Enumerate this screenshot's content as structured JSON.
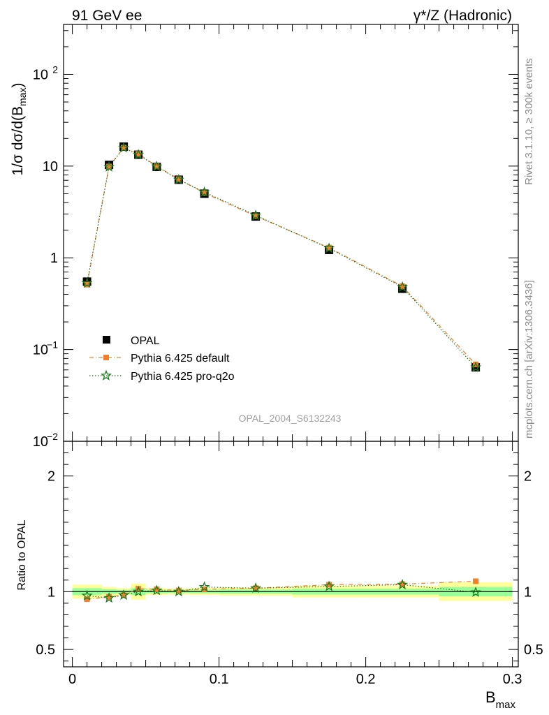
{
  "header": {
    "left": "91 GeV ee",
    "right": "γ*/Z (Hadronic)"
  },
  "side_labels": {
    "rivet": "Rivet 3.1.10, ≥ 300k events",
    "mcplots": "mcplots.cern.ch [arXiv:1306.3436]"
  },
  "watermark": "OPAL_2004_S6132243",
  "chart_data": [
    {
      "type": "line",
      "panel": "main",
      "ylabel": "1/σ dσ/d(B_max)",
      "yscale": "log",
      "ylim": [
        0.01,
        350
      ],
      "xlim": [
        -0.006,
        0.304
      ],
      "yticks": [
        {
          "v": 0.01,
          "label": "10",
          "exp": "−2"
        },
        {
          "v": 0.1,
          "label": "10",
          "exp": "−1"
        },
        {
          "v": 1,
          "label": "1",
          "exp": ""
        },
        {
          "v": 10,
          "label": "10",
          "exp": ""
        },
        {
          "v": 100,
          "label": "10",
          "exp": "2"
        }
      ],
      "legend_position": "center-left",
      "x": [
        0.01,
        0.025,
        0.035,
        0.045,
        0.0575,
        0.0725,
        0.09,
        0.125,
        0.175,
        0.225,
        0.275
      ],
      "series": [
        {
          "name": "OPAL",
          "style": "data",
          "color": "#000000",
          "values": [
            0.55,
            10.3,
            16.3,
            13.3,
            9.8,
            7.1,
            5.0,
            2.82,
            1.22,
            0.46,
            0.064
          ]
        },
        {
          "name": "Pythia 6.425 default",
          "style": "dashdot",
          "color": "#f08030",
          "values": [
            0.51,
            9.9,
            15.9,
            13.6,
            10.0,
            7.2,
            5.1,
            2.85,
            1.29,
            0.49,
            0.069
          ]
        },
        {
          "name": "Pythia 6.425 pro-q2o",
          "style": "dotted",
          "color": "#1a7a1a",
          "values": [
            0.53,
            9.8,
            15.8,
            13.3,
            9.9,
            7.1,
            5.2,
            2.9,
            1.27,
            0.48,
            0.064
          ]
        }
      ]
    },
    {
      "type": "line",
      "panel": "ratio",
      "xlabel": "B_max",
      "ylabel": "Ratio to OPAL",
      "ylim": [
        0.35,
        2.3
      ],
      "yticks": [
        0.5,
        1,
        2
      ],
      "xticks": [
        0,
        0.1,
        0.2,
        0.3
      ],
      "x": [
        0.01,
        0.025,
        0.035,
        0.045,
        0.0575,
        0.0725,
        0.09,
        0.125,
        0.175,
        0.225,
        0.275
      ],
      "bins": [
        {
          "lo": 0.0,
          "hi": 0.02,
          "yellow": 0.06,
          "green": 0.03
        },
        {
          "lo": 0.02,
          "hi": 0.03,
          "yellow": 0.04,
          "green": 0.02
        },
        {
          "lo": 0.03,
          "hi": 0.04,
          "yellow": 0.03,
          "green": 0.015
        },
        {
          "lo": 0.04,
          "hi": 0.05,
          "yellow": 0.07,
          "green": 0.03
        },
        {
          "lo": 0.05,
          "hi": 0.065,
          "yellow": 0.03,
          "green": 0.015
        },
        {
          "lo": 0.065,
          "hi": 0.08,
          "yellow": 0.025,
          "green": 0.012
        },
        {
          "lo": 0.08,
          "hi": 0.1,
          "yellow": 0.03,
          "green": 0.015
        },
        {
          "lo": 0.1,
          "hi": 0.15,
          "yellow": 0.035,
          "green": 0.018
        },
        {
          "lo": 0.15,
          "hi": 0.2,
          "yellow": 0.05,
          "green": 0.025
        },
        {
          "lo": 0.2,
          "hi": 0.25,
          "yellow": 0.05,
          "green": 0.025
        },
        {
          "lo": 0.25,
          "hi": 0.3,
          "yellow": 0.08,
          "green": 0.04
        }
      ],
      "series": [
        {
          "name": "Pythia 6.425 default",
          "color": "#f08030",
          "values": [
            0.935,
            0.955,
            0.97,
            1.025,
            1.02,
            1.01,
            1.02,
            1.03,
            1.06,
            1.065,
            1.09
          ]
        },
        {
          "name": "Pythia 6.425 pro-q2o",
          "color": "#1a7a1a",
          "values": [
            0.965,
            0.945,
            0.97,
            1.0,
            1.01,
            1.0,
            1.04,
            1.03,
            1.045,
            1.06,
            0.995
          ]
        }
      ]
    }
  ]
}
